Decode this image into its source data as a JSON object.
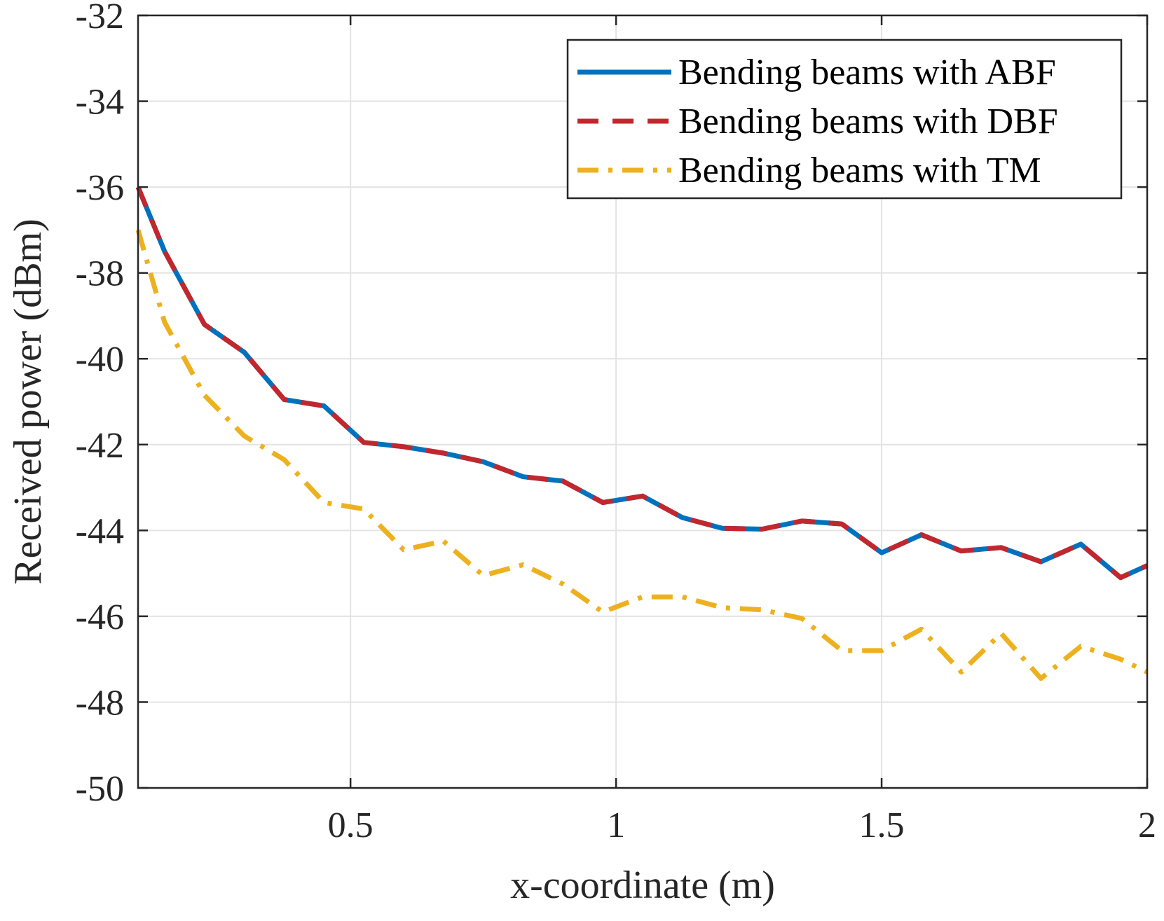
{
  "chart_data": {
    "type": "line",
    "title": "",
    "xlabel": "x-coordinate (m)",
    "ylabel": "Received power (dBm)",
    "xlim": [
      0.1,
      2
    ],
    "ylim": [
      -50,
      -32
    ],
    "xticks": [
      0.5,
      1,
      1.5,
      2
    ],
    "xtick_labels": [
      "0.5",
      "1",
      "1.5",
      "2"
    ],
    "yticks": [
      -50,
      -48,
      -46,
      -44,
      -42,
      -40,
      -38,
      -36,
      -34,
      -32
    ],
    "ytick_labels": [
      "-50",
      "-48",
      "-46",
      "-44",
      "-42",
      "-40",
      "-38",
      "-36",
      "-34",
      "-32"
    ],
    "grid": true,
    "legend_position": "top-right",
    "x": [
      0.1,
      0.15,
      0.225,
      0.3,
      0.375,
      0.45,
      0.525,
      0.6,
      0.675,
      0.75,
      0.825,
      0.9,
      0.975,
      1.05,
      1.125,
      1.2,
      1.275,
      1.35,
      1.425,
      1.5,
      1.575,
      1.65,
      1.725,
      1.8,
      1.875,
      1.95,
      2.0
    ],
    "series": [
      {
        "name": "Bending beams with ABF",
        "color": "#0072BD",
        "style": "solid",
        "values": [
          -36.0,
          -37.5,
          -39.2,
          -39.85,
          -40.95,
          -41.1,
          -41.95,
          -42.05,
          -42.2,
          -42.4,
          -42.75,
          -42.85,
          -43.35,
          -43.2,
          -43.7,
          -43.95,
          -43.97,
          -43.78,
          -43.85,
          -44.52,
          -44.1,
          -44.48,
          -44.4,
          -44.73,
          -44.32,
          -45.1,
          -44.82
        ]
      },
      {
        "name": "Bending beams with DBF",
        "color": "#C1272D",
        "style": "dashed",
        "values": [
          -36.0,
          -37.5,
          -39.2,
          -39.85,
          -40.95,
          -41.1,
          -41.95,
          -42.05,
          -42.2,
          -42.4,
          -42.75,
          -42.85,
          -43.35,
          -43.2,
          -43.7,
          -43.95,
          -43.97,
          -43.78,
          -43.85,
          -44.52,
          -44.1,
          -44.48,
          -44.4,
          -44.73,
          -44.32,
          -45.1,
          -44.82
        ]
      },
      {
        "name": "Bending beams with TM",
        "color": "#EDB120",
        "style": "dashdot",
        "values": [
          -37.0,
          -39.15,
          -40.85,
          -41.8,
          -42.35,
          -43.35,
          -43.5,
          -44.45,
          -44.25,
          -45.05,
          -44.8,
          -45.25,
          -45.9,
          -45.55,
          -45.55,
          -45.8,
          -45.85,
          -46.05,
          -46.8,
          -46.8,
          -46.3,
          -47.3,
          -46.4,
          -47.45,
          -46.7,
          -47.0,
          -47.3
        ]
      }
    ]
  }
}
